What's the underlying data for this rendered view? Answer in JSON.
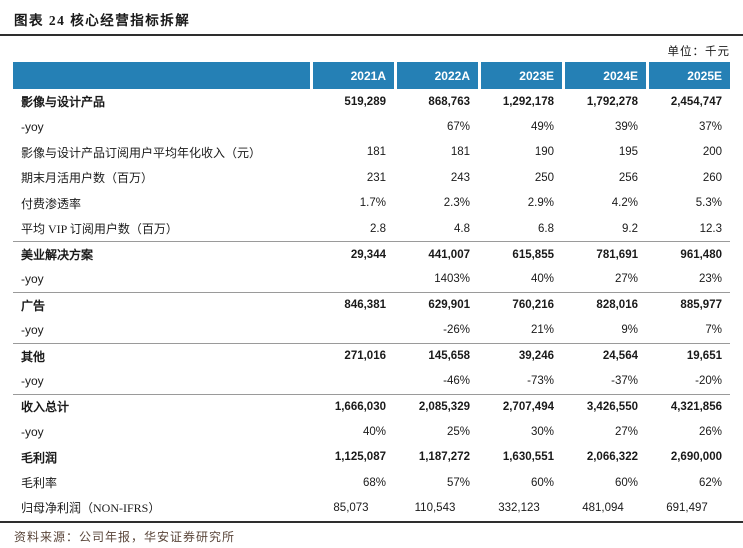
{
  "title": "图表 24 核心经营指标拆解",
  "unit_label": "单位：千元",
  "table": {
    "columns": [
      "",
      "2021A",
      "2022A",
      "2023E",
      "2024E",
      "2025E"
    ],
    "rows": [
      {
        "label": "影像与设计产品",
        "values": [
          "519,289",
          "868,763",
          "1,292,178",
          "1,792,278",
          "2,454,747"
        ],
        "bold": true
      },
      {
        "label": "-yoy",
        "values": [
          "",
          "67%",
          "49%",
          "39%",
          "37%"
        ]
      },
      {
        "label": "影像与设计产品订阅用户平均年化收入（元）",
        "values": [
          "181",
          "181",
          "190",
          "195",
          "200"
        ]
      },
      {
        "label": "期末月活用户数（百万）",
        "values": [
          "231",
          "243",
          "250",
          "256",
          "260"
        ]
      },
      {
        "label": "付费渗透率",
        "values": [
          "1.7%",
          "2.3%",
          "2.9%",
          "4.2%",
          "5.3%"
        ]
      },
      {
        "label": "平均 VIP 订阅用户数（百万）",
        "values": [
          "2.8",
          "4.8",
          "6.8",
          "9.2",
          "12.3"
        ]
      },
      {
        "label": "美业解决方案",
        "values": [
          "29,344",
          "441,007",
          "615,855",
          "781,691",
          "961,480"
        ],
        "bold": true,
        "sep": true
      },
      {
        "label": "-yoy",
        "values": [
          "",
          "1403%",
          "40%",
          "27%",
          "23%"
        ]
      },
      {
        "label": "广告",
        "values": [
          "846,381",
          "629,901",
          "760,216",
          "828,016",
          "885,977"
        ],
        "bold": true,
        "sep": true
      },
      {
        "label": "-yoy",
        "values": [
          "",
          "-26%",
          "21%",
          "9%",
          "7%"
        ]
      },
      {
        "label": "其他",
        "values": [
          "271,016",
          "145,658",
          "39,246",
          "24,564",
          "19,651"
        ],
        "bold": true,
        "sep": true
      },
      {
        "label": "-yoy",
        "values": [
          "",
          "-46%",
          "-73%",
          "-37%",
          "-20%"
        ]
      },
      {
        "label": "收入总计",
        "values": [
          "1,666,030",
          "2,085,329",
          "2,707,494",
          "3,426,550",
          "4,321,856"
        ],
        "bold": true,
        "sep": true
      },
      {
        "label": "-yoy",
        "values": [
          "40%",
          "25%",
          "30%",
          "27%",
          "26%"
        ]
      },
      {
        "label": "毛利润",
        "values": [
          "1,125,087",
          "1,187,272",
          "1,630,551",
          "2,066,322",
          "2,690,000"
        ],
        "bold": true
      },
      {
        "label": "毛利率",
        "values": [
          "68%",
          "57%",
          "60%",
          "60%",
          "62%"
        ]
      },
      {
        "label": "归母净利润（NON-IFRS）",
        "values": [
          "85,073",
          "110,543",
          "332,123",
          "481,094",
          "691,497"
        ],
        "align": "center"
      }
    ]
  },
  "footer": {
    "source_label": "资料来源：公司年报，华安证券研究所"
  },
  "colors": {
    "header_bg": "#2580B5",
    "header_text": "#FFFFFF",
    "rule_dark": "#2e2e2e",
    "rule_light": "#9a9a9a",
    "source_text": "#5a463a"
  }
}
